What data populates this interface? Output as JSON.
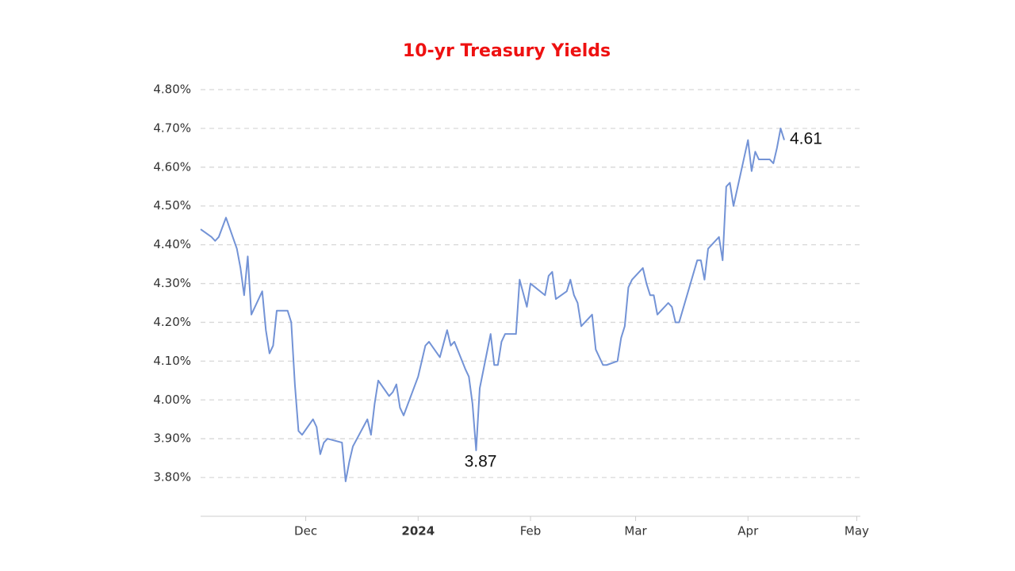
{
  "chart_data": {
    "type": "line",
    "title": "10-yr Treasury Yields",
    "x": [
      "2023-11-02",
      "2023-11-05",
      "2023-11-06",
      "2023-11-07",
      "2023-11-09",
      "2023-11-12",
      "2023-11-13",
      "2023-11-14",
      "2023-11-15",
      "2023-11-16",
      "2023-11-19",
      "2023-11-20",
      "2023-11-21",
      "2023-11-22",
      "2023-11-23",
      "2023-11-26",
      "2023-11-27",
      "2023-11-28",
      "2023-11-29",
      "2023-11-30",
      "2023-12-03",
      "2023-12-04",
      "2023-12-05",
      "2023-12-06",
      "2023-12-07",
      "2023-12-11",
      "2023-12-12",
      "2023-12-13",
      "2023-12-14",
      "2023-12-18",
      "2023-12-19",
      "2023-12-20",
      "2023-12-21",
      "2023-12-24",
      "2023-12-25",
      "2023-12-26",
      "2023-12-27",
      "2023-12-28",
      "2024-01-01",
      "2024-01-02",
      "2024-01-03",
      "2024-01-04",
      "2024-01-07",
      "2024-01-09",
      "2024-01-10",
      "2024-01-11",
      "2024-01-14",
      "2024-01-15",
      "2024-01-16",
      "2024-01-17",
      "2024-01-18",
      "2024-01-21",
      "2024-01-22",
      "2024-01-23",
      "2024-01-24",
      "2024-01-25",
      "2024-01-28",
      "2024-01-29",
      "2024-01-31",
      "2024-02-01",
      "2024-02-05",
      "2024-02-06",
      "2024-02-07",
      "2024-02-08",
      "2024-02-11",
      "2024-02-12",
      "2024-02-13",
      "2024-02-14",
      "2024-02-15",
      "2024-02-18",
      "2024-02-19",
      "2024-02-21",
      "2024-02-22",
      "2024-02-25",
      "2024-02-26",
      "2024-02-27",
      "2024-02-28",
      "2024-02-29",
      "2024-03-03",
      "2024-03-04",
      "2024-03-05",
      "2024-03-06",
      "2024-03-07",
      "2024-03-10",
      "2024-03-11",
      "2024-03-12",
      "2024-03-13",
      "2024-03-18",
      "2024-03-19",
      "2024-03-20",
      "2024-03-21",
      "2024-03-24",
      "2024-03-25",
      "2024-03-26",
      "2024-03-27",
      "2024-03-28",
      "2024-04-01",
      "2024-04-02",
      "2024-04-03",
      "2024-04-04",
      "2024-04-07",
      "2024-04-08",
      "2024-04-09",
      "2024-04-10",
      "2024-04-11"
    ],
    "series": [
      {
        "color": "#7393d6",
        "values": [
          4.44,
          4.42,
          4.41,
          4.42,
          4.47,
          4.39,
          4.34,
          4.27,
          4.37,
          4.22,
          4.28,
          4.18,
          4.12,
          4.14,
          4.23,
          4.23,
          4.2,
          4.04,
          3.92,
          3.91,
          3.95,
          3.93,
          3.86,
          3.89,
          3.9,
          3.89,
          3.79,
          3.84,
          3.88,
          3.95,
          3.91,
          3.99,
          4.05,
          4.01,
          4.02,
          4.04,
          3.98,
          3.96,
          4.06,
          4.1,
          4.14,
          4.15,
          4.11,
          4.18,
          4.14,
          4.15,
          4.08,
          4.06,
          3.99,
          3.87,
          4.03,
          4.17,
          4.09,
          4.09,
          4.15,
          4.17,
          4.17,
          4.31,
          4.24,
          4.3,
          4.27,
          4.32,
          4.33,
          4.26,
          4.28,
          4.31,
          4.27,
          4.25,
          4.19,
          4.22,
          4.13,
          4.09,
          4.09,
          4.1,
          4.16,
          4.19,
          4.29,
          4.31,
          4.34,
          4.3,
          4.27,
          4.27,
          4.22,
          4.25,
          4.24,
          4.2,
          4.2,
          4.36,
          4.36,
          4.31,
          4.39,
          4.42,
          4.36,
          4.55,
          4.56,
          4.5,
          4.67,
          4.59,
          4.64,
          4.62,
          4.62,
          4.61,
          4.65,
          4.7,
          4.67
        ]
      }
    ],
    "xlim": [
      "2023-11-02",
      "2024-05-02"
    ],
    "xticks": [
      {
        "value": "2023-12-01",
        "label": "Dec"
      },
      {
        "value": "2024-01-01",
        "label": "2024"
      },
      {
        "value": "2024-02-01",
        "label": "Feb"
      },
      {
        "value": "2024-03-01",
        "label": "Mar"
      },
      {
        "value": "2024-04-01",
        "label": "Apr"
      },
      {
        "value": "2024-05-01",
        "label": "May"
      }
    ],
    "ylim": [
      3.7,
      4.8
    ],
    "yticks": [
      {
        "value": 3.8,
        "label": "3.80%"
      },
      {
        "value": 3.9,
        "label": "3.90%"
      },
      {
        "value": 4.0,
        "label": "4.00%"
      },
      {
        "value": 4.1,
        "label": "4.10%"
      },
      {
        "value": 4.2,
        "label": "4.20%"
      },
      {
        "value": 4.3,
        "label": "4.30%"
      },
      {
        "value": 4.4,
        "label": "4.40%"
      },
      {
        "value": 4.5,
        "label": "4.50%"
      },
      {
        "value": 4.6,
        "label": "4.60%"
      },
      {
        "value": 4.7,
        "label": "4.70%"
      },
      {
        "value": 4.8,
        "label": "4.80%"
      }
    ],
    "grid": true,
    "annotations": [
      "3.87",
      "4.61"
    ]
  }
}
